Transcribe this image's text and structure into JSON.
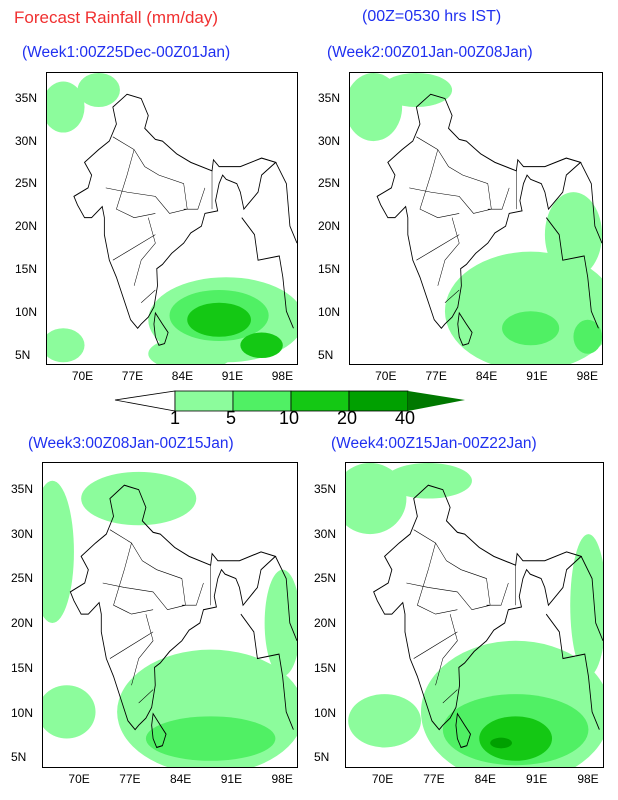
{
  "header": {
    "title": "Forecast Rainfall (mm/day)",
    "note": "(00Z=0530 hrs IST)"
  },
  "panels": [
    {
      "title": "(Week1:00Z25Dec-00Z01Jan)"
    },
    {
      "title": "(Week2:00Z01Jan-00Z08Jan)"
    },
    {
      "title": "(Week3:00Z08Jan-00Z15Jan)"
    },
    {
      "title": "(Week4:00Z15Jan-00Z22Jan)"
    }
  ],
  "axes": {
    "x_ticks": [
      "70E",
      "77E",
      "84E",
      "91E",
      "98E"
    ],
    "y_ticks": [
      "35N",
      "30N",
      "25N",
      "20N",
      "15N",
      "10N",
      "5N"
    ]
  },
  "legend": {
    "unit": "mm/day",
    "levels": [
      "1",
      "5",
      "10",
      "20",
      "40"
    ],
    "colors": [
      "#8cfc9c",
      "#50f064",
      "#14c814",
      "#00a000",
      "#007800"
    ]
  }
}
